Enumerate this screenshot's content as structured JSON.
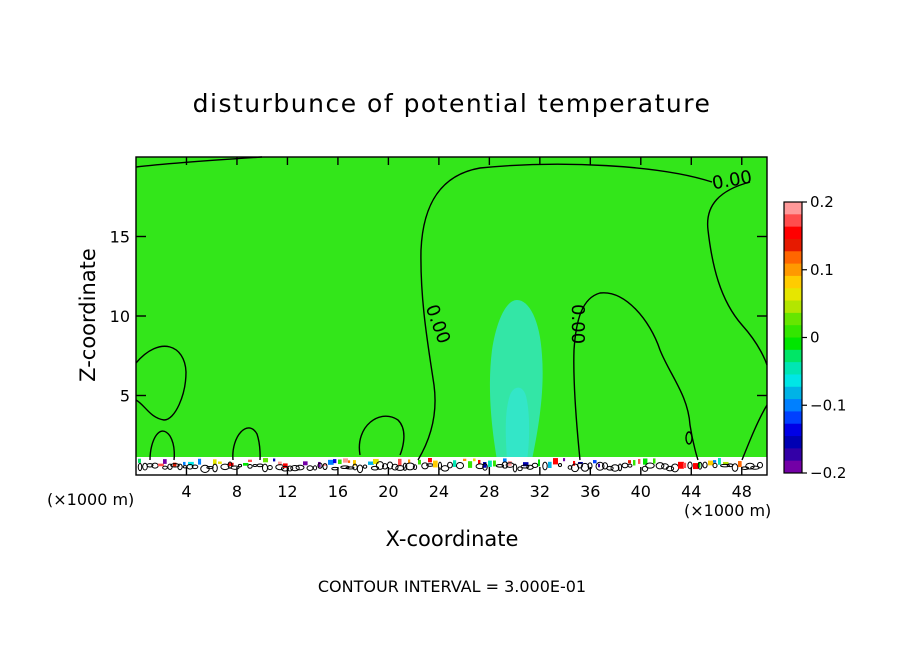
{
  "chart_data": {
    "type": "heatmap",
    "title": "disturbunce of potential temperature",
    "xlabel": "X-coordinate",
    "ylabel": "Z-coordinate",
    "x_unit": "(×1000 m)",
    "x_unit_right": "(×1000 m)",
    "xlim": [
      0,
      50
    ],
    "ylim": [
      0,
      20
    ],
    "x_ticks": [
      4,
      8,
      12,
      16,
      20,
      24,
      28,
      32,
      36,
      40,
      44,
      48
    ],
    "y_ticks": [
      5,
      10,
      15
    ],
    "contour_labels": [
      "0.00",
      "0.00",
      "0.00"
    ],
    "footer": "CONTOUR INTERVAL = 3.000E-01",
    "colorbar": {
      "ticks": [
        "0.2",
        "0.1",
        "0",
        "−0.1",
        "−0.2"
      ],
      "tick_values": [
        0.2,
        0.1,
        0,
        -0.1,
        -0.2
      ],
      "colors": [
        "#ff9999",
        "#ff4d4d",
        "#ff0000",
        "#e61a00",
        "#ff6600",
        "#ff9900",
        "#ffcc00",
        "#e6e600",
        "#b3e600",
        "#66e600",
        "#33e600",
        "#00e600",
        "#00e666",
        "#00e6b3",
        "#00e6e6",
        "#00b3e6",
        "#0080ff",
        "#0040ff",
        "#0000e6",
        "#0000b3",
        "#3300a6",
        "#7300a6"
      ]
    },
    "field_colors": {
      "background": "#33e61a",
      "plume": "#33e6a6",
      "plume_core": "#33e6c8"
    }
  }
}
